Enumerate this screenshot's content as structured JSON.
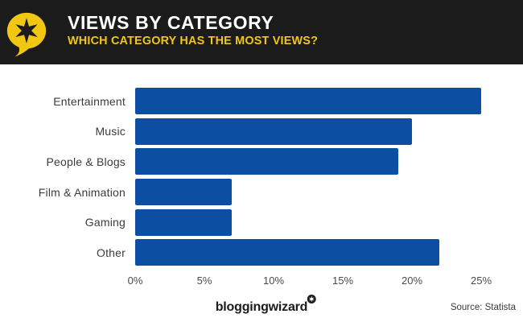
{
  "header": {
    "title": "VIEWS BY CATEGORY",
    "subtitle": "WHICH CATEGORY HAS THE MOST VIEWS?"
  },
  "chart_data": {
    "type": "bar",
    "orientation": "horizontal",
    "title": "VIEWS BY CATEGORY",
    "subtitle": "WHICH CATEGORY HAS THE MOST VIEWS?",
    "categories": [
      "Entertainment",
      "Music",
      "People & Blogs",
      "Film & Animation",
      "Gaming",
      "Other"
    ],
    "values": [
      25,
      20,
      19,
      7,
      7,
      22
    ],
    "unit": "%",
    "xlabel": "",
    "ylabel": "",
    "xlim": [
      0,
      25
    ],
    "x_ticks": [
      {
        "label": "0%",
        "value": 0
      },
      {
        "label": "5%",
        "value": 5
      },
      {
        "label": "10%",
        "value": 10
      },
      {
        "label": "15%",
        "value": 15
      },
      {
        "label": "20%",
        "value": 20
      },
      {
        "label": "25%",
        "value": 25
      }
    ],
    "grid": false,
    "legend": null,
    "bar_color": "#0B4EA2"
  },
  "colors": {
    "header_bg": "#1B1B1B",
    "title_text": "#FFFFFF",
    "accent_yellow": "#F2C713",
    "bar_blue": "#0B4EA2",
    "label_text": "#3B3B3B",
    "axis_text": "#4A4A4A"
  },
  "footer": {
    "brand": "bloggingwizard",
    "source": "Source: Statista"
  }
}
